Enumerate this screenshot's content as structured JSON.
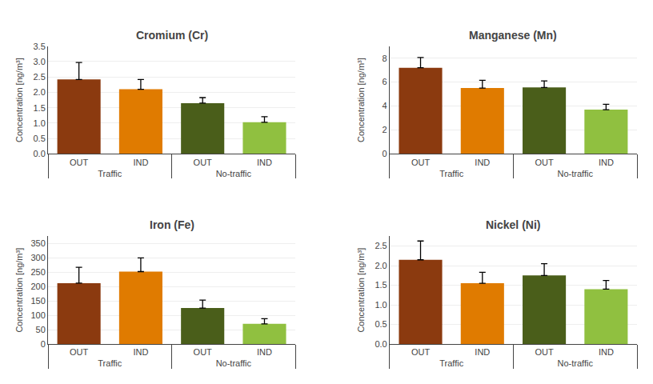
{
  "chart_data": [
    {
      "type": "bar",
      "title": "Cromium (Cr)",
      "y_label": "Concentration [ng/m³]",
      "categories": [
        "OUT",
        "IND",
        "OUT",
        "IND"
      ],
      "groups": [
        "Traffic",
        "Traffic",
        "No-traffic",
        "No-traffic"
      ],
      "values": [
        2.42,
        2.1,
        1.65,
        1.03
      ],
      "errors": [
        0.55,
        0.32,
        0.18,
        0.18
      ],
      "colors": [
        "#8B3A0F",
        "#E07B00",
        "#4A5E1A",
        "#90C040"
      ],
      "ylim": [
        0,
        3.5
      ],
      "yticks": [
        {
          "value": 0,
          "label": "0.0"
        },
        0.5,
        {
          "value": 1,
          "label": "1.0"
        },
        1.5,
        {
          "value": 2,
          "label": "2.0"
        },
        2.5,
        {
          "value": 3,
          "label": "3.0"
        },
        3.5
      ],
      "grid": true
    },
    {
      "type": "bar",
      "title": "Manganese (Mn)",
      "y_label": "Concentration [ng/m³]",
      "categories": [
        "OUT",
        "IND",
        "OUT",
        "IND"
      ],
      "groups": [
        "Traffic",
        "Traffic",
        "No-traffic",
        "No-traffic"
      ],
      "values": [
        7.2,
        5.5,
        5.55,
        3.7
      ],
      "errors": [
        0.85,
        0.65,
        0.55,
        0.45
      ],
      "colors": [
        "#8B3A0F",
        "#E07B00",
        "#4A5E1A",
        "#90C040"
      ],
      "ylim": [
        0,
        9
      ],
      "yticks": [
        0,
        2,
        4,
        6,
        8
      ],
      "grid": true
    },
    {
      "type": "bar",
      "title": "Iron (Fe)",
      "y_label": "Concentration [ng/m³]",
      "categories": [
        "OUT",
        "IND",
        "OUT",
        "IND"
      ],
      "groups": [
        "Traffic",
        "Traffic",
        "No-traffic",
        "No-traffic"
      ],
      "values": [
        212,
        252,
        125,
        70
      ],
      "errors": [
        55,
        48,
        28,
        18
      ],
      "colors": [
        "#8B3A0F",
        "#E07B00",
        "#4A5E1A",
        "#90C040"
      ],
      "ylim": [
        0,
        375
      ],
      "yticks": [
        0,
        50,
        100,
        150,
        200,
        250,
        300,
        350
      ],
      "grid": true
    },
    {
      "type": "bar",
      "title": "Nickel (Ni)",
      "y_label": "Concentration [ng/m³]",
      "categories": [
        "OUT",
        "IND",
        "OUT",
        "IND"
      ],
      "groups": [
        "Traffic",
        "Traffic",
        "No-traffic",
        "No-traffic"
      ],
      "values": [
        2.15,
        1.55,
        1.75,
        1.4
      ],
      "errors": [
        0.48,
        0.28,
        0.3,
        0.22
      ],
      "colors": [
        "#8B3A0F",
        "#E07B00",
        "#4A5E1A",
        "#90C040"
      ],
      "ylim": [
        0,
        2.75
      ],
      "yticks": [
        {
          "value": 0,
          "label": "0.0"
        },
        0.5,
        {
          "value": 1,
          "label": "1.0"
        },
        1.5,
        {
          "value": 2,
          "label": "2.0"
        },
        2.5
      ],
      "grid": true
    }
  ]
}
